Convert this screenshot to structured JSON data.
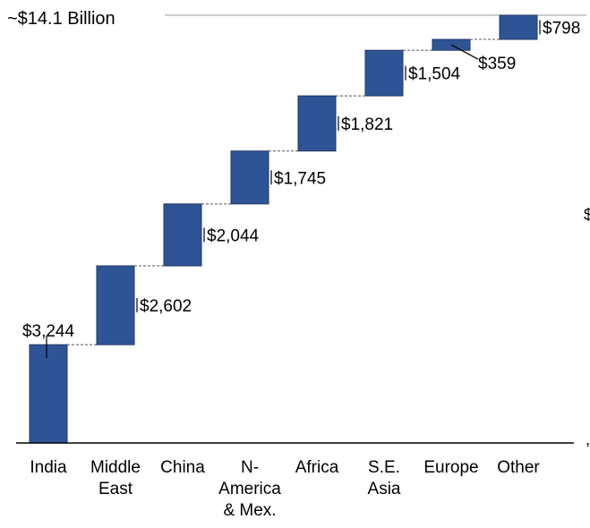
{
  "chart_data": {
    "type": "bar",
    "subtype": "waterfall",
    "total_label": "~$14.1 Billion",
    "categories": [
      "India",
      "Middle East",
      "China",
      "N-America & Mex.",
      "Africa",
      "S.E. Asia",
      "Europe",
      "Other"
    ],
    "category_label_lines": [
      [
        "India"
      ],
      [
        "Middle",
        "East"
      ],
      [
        "China"
      ],
      [
        "N-",
        "America",
        "& Mex."
      ],
      [
        "Africa"
      ],
      [
        "S.E.",
        "Asia"
      ],
      [
        "Europe"
      ],
      [
        "Other"
      ]
    ],
    "values": [
      3244,
      2602,
      2044,
      1745,
      1821,
      1504,
      359,
      798
    ],
    "value_labels": [
      "$3,244",
      "$2,602",
      "$2,044",
      "$1,745",
      "$1,821",
      "$1,504",
      "$359",
      "$798"
    ],
    "ylim": [
      0,
      14117
    ],
    "grid": false,
    "legend": "none",
    "colors": {
      "bar": "#2f5496",
      "bar_edge": "#1f3864"
    },
    "stray_glyphs": [
      "$",
      ","
    ]
  }
}
